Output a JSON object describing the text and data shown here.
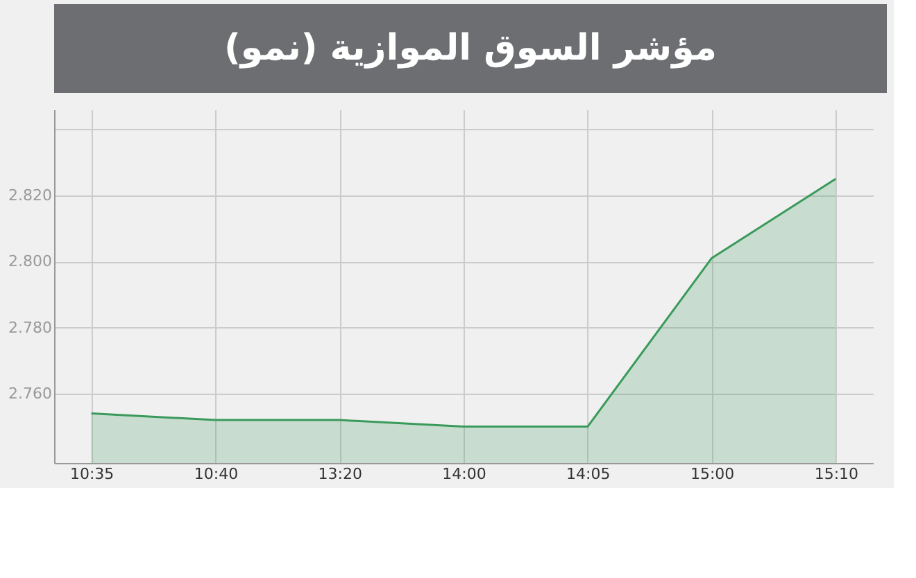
{
  "chart_data": {
    "type": "area",
    "title": "مؤشر السوق الموازية (نمو)",
    "categories": [
      "10:35",
      "10:40",
      "13:20",
      "14:00",
      "14:05",
      "15:00",
      "15:10"
    ],
    "series": [
      {
        "color": "#3a9a5b",
        "values": [
          2.754,
          2.752,
          2.752,
          2.75,
          2.75,
          2.801,
          2.825
        ]
      }
    ],
    "ylim": [
      2.739,
      2.846
    ],
    "yticks": [
      {
        "value": 2.76,
        "label": "2.760"
      },
      {
        "value": 2.78,
        "label": "2.780"
      },
      {
        "value": 2.8,
        "label": "2.800"
      },
      {
        "value": 2.82,
        "label": "2.820"
      },
      {
        "value": 2.84,
        "label": null
      }
    ],
    "grid": true
  }
}
